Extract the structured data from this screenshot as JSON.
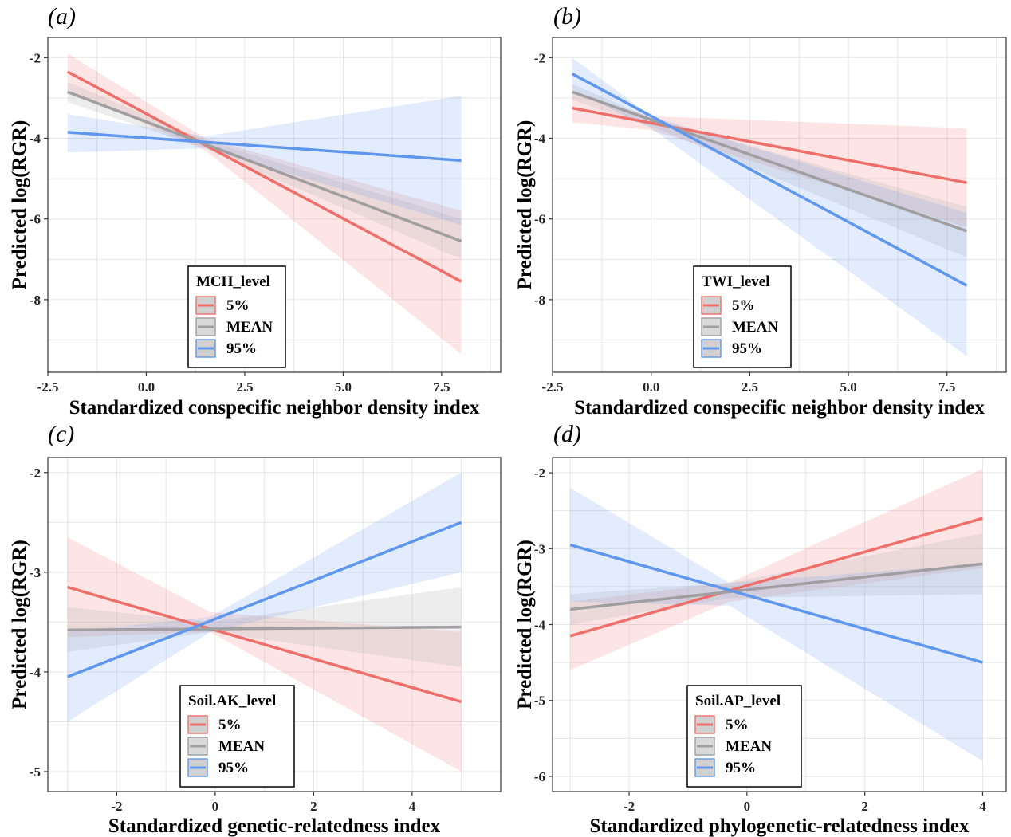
{
  "chart_data": [
    {
      "panel": "(a)",
      "type": "line",
      "xlabel": "Standardized conspecific neighbor density index",
      "ylabel": "Predicted log(RGR)",
      "xlim": [
        -2.5,
        9.0
      ],
      "ylim": [
        -9.8,
        -1.5
      ],
      "xticks": [
        -2.5,
        0.0,
        2.5,
        5.0,
        7.5
      ],
      "xtick_labels": [
        "-2.5",
        "0.0",
        "2.5",
        "5.0",
        "7.5"
      ],
      "yticks": [
        -2,
        -4,
        -6,
        -8
      ],
      "ytick_labels": [
        "-2",
        "-4",
        "-6",
        "-8"
      ],
      "grid": true,
      "legend": {
        "title": "MCH_level",
        "position": "bottom-center"
      },
      "series": [
        {
          "name": "5%",
          "color": "#ee6f6a",
          "line": {
            "x": [
              -2,
              8
            ],
            "y": [
              -2.35,
              -7.55
            ]
          },
          "ribbon": {
            "x": [
              -2,
              1.5,
              8
            ],
            "lower": [
              -2.8,
              -4.3,
              -9.35
            ],
            "upper": [
              -1.9,
              -4.0,
              -5.8
            ]
          }
        },
        {
          "name": "MEAN",
          "color": "#a09ea0",
          "line": {
            "x": [
              -2,
              8
            ],
            "y": [
              -2.85,
              -6.55
            ]
          },
          "ribbon": {
            "x": [
              -2,
              1.5,
              8
            ],
            "lower": [
              -3.1,
              -4.25,
              -7.0
            ],
            "upper": [
              -2.6,
              -4.05,
              -6.0
            ]
          }
        },
        {
          "name": "95%",
          "color": "#5f97ee",
          "line": {
            "x": [
              -2,
              8
            ],
            "y": [
              -3.85,
              -4.55
            ]
          },
          "ribbon": {
            "x": [
              -2,
              1.5,
              8
            ],
            "lower": [
              -4.35,
              -4.25,
              -6.15
            ],
            "upper": [
              -3.4,
              -3.95,
              -2.95
            ]
          }
        }
      ]
    },
    {
      "panel": "(b)",
      "type": "line",
      "xlabel": "Standardized conspecific neighbor density index",
      "ylabel": "Predicted log(RGR)",
      "xlim": [
        -2.5,
        9.0
      ],
      "ylim": [
        -9.8,
        -1.5
      ],
      "xticks": [
        -2.5,
        0.0,
        2.5,
        5.0,
        7.5
      ],
      "xtick_labels": [
        "-2.5",
        "0.0",
        "2.5",
        "5.0",
        "7.5"
      ],
      "yticks": [
        -2,
        -4,
        -6,
        -8
      ],
      "ytick_labels": [
        "-2",
        "-4",
        "-6",
        "-8"
      ],
      "grid": true,
      "legend": {
        "title": "TWI_level",
        "position": "bottom-center"
      },
      "series": [
        {
          "name": "5%",
          "color": "#ee6f6a",
          "line": {
            "x": [
              -2,
              8
            ],
            "y": [
              -3.25,
              -5.1
            ]
          },
          "ribbon": {
            "x": [
              -2,
              0,
              8
            ],
            "lower": [
              -3.6,
              -3.8,
              -6.2
            ],
            "upper": [
              -2.9,
              -3.45,
              -3.75
            ]
          }
        },
        {
          "name": "MEAN",
          "color": "#a09ea0",
          "line": {
            "x": [
              -2,
              8
            ],
            "y": [
              -2.85,
              -6.3
            ]
          },
          "ribbon": {
            "x": [
              -2,
              0,
              8
            ],
            "lower": [
              -3.05,
              -3.7,
              -6.95
            ],
            "upper": [
              -2.65,
              -3.5,
              -5.7
            ]
          }
        },
        {
          "name": "95%",
          "color": "#5f97ee",
          "line": {
            "x": [
              -2,
              8
            ],
            "y": [
              -2.4,
              -7.65
            ]
          },
          "ribbon": {
            "x": [
              -2,
              0,
              8
            ],
            "lower": [
              -2.8,
              -3.75,
              -9.4
            ],
            "upper": [
              -2.0,
              -3.45,
              -5.85
            ]
          }
        }
      ]
    },
    {
      "panel": "(c)",
      "type": "line",
      "xlabel": "Standardized genetic-relatedness index",
      "ylabel": "Predicted log(RGR)",
      "xlim": [
        -3.4,
        5.8
      ],
      "ylim": [
        -5.2,
        -1.85
      ],
      "xticks": [
        -2,
        0,
        2,
        4
      ],
      "xtick_labels": [
        "-2",
        "0",
        "2",
        "4"
      ],
      "yticks": [
        -2,
        -3,
        -4,
        -5
      ],
      "ytick_labels": [
        "-2",
        "-3",
        "-4",
        "-5"
      ],
      "grid": true,
      "legend": {
        "title": "Soil.AK_level",
        "position": "bottom-center"
      },
      "series": [
        {
          "name": "5%",
          "color": "#ee6f6a",
          "line": {
            "x": [
              -3,
              5
            ],
            "y": [
              -3.15,
              -4.3
            ]
          },
          "ribbon": {
            "x": [
              -3,
              -0.1,
              5
            ],
            "lower": [
              -3.65,
              -3.6,
              -5.0
            ],
            "upper": [
              -2.65,
              -3.4,
              -3.6
            ]
          }
        },
        {
          "name": "MEAN",
          "color": "#a09ea0",
          "line": {
            "x": [
              -3,
              5
            ],
            "y": [
              -3.58,
              -3.55
            ]
          },
          "ribbon": {
            "x": [
              -3,
              -0.1,
              5
            ],
            "lower": [
              -3.8,
              -3.6,
              -3.95
            ],
            "upper": [
              -3.35,
              -3.5,
              -3.15
            ]
          }
        },
        {
          "name": "95%",
          "color": "#5f97ee",
          "line": {
            "x": [
              -3,
              5
            ],
            "y": [
              -4.05,
              -2.5
            ]
          },
          "ribbon": {
            "x": [
              -3,
              -0.1,
              5
            ],
            "lower": [
              -4.5,
              -3.6,
              -3.0
            ],
            "upper": [
              -3.6,
              -3.45,
              -2.0
            ]
          }
        }
      ]
    },
    {
      "panel": "(d)",
      "type": "line",
      "xlabel": "Standardized phylogenetic-relatedness index",
      "ylabel": "Predicted log(RGR)",
      "xlim": [
        -3.3,
        4.4
      ],
      "ylim": [
        -6.2,
        -1.8
      ],
      "xticks": [
        -2,
        0,
        2,
        4
      ],
      "xtick_labels": [
        "-2",
        "0",
        "2",
        "4"
      ],
      "yticks": [
        -2,
        -3,
        -4,
        -5,
        -6
      ],
      "ytick_labels": [
        "-2",
        "-3",
        "-4",
        "-5",
        "-6"
      ],
      "grid": true,
      "legend": {
        "title": "Soil.AP_level",
        "position": "bottom-center"
      },
      "series": [
        {
          "name": "5%",
          "color": "#ee6f6a",
          "line": {
            "x": [
              -3,
              4
            ],
            "y": [
              -4.15,
              -2.6
            ]
          },
          "ribbon": {
            "x": [
              -3,
              -0.3,
              4
            ],
            "lower": [
              -4.6,
              -3.7,
              -3.25
            ],
            "upper": [
              -3.7,
              -3.45,
              -1.95
            ]
          }
        },
        {
          "name": "MEAN",
          "color": "#a09ea0",
          "line": {
            "x": [
              -3,
              4
            ],
            "y": [
              -3.8,
              -3.2
            ]
          },
          "ribbon": {
            "x": [
              -3,
              -0.3,
              4
            ],
            "lower": [
              -4.0,
              -3.65,
              -3.6
            ],
            "upper": [
              -3.6,
              -3.45,
              -2.8
            ]
          }
        },
        {
          "name": "95%",
          "color": "#5f97ee",
          "line": {
            "x": [
              -3,
              4
            ],
            "y": [
              -2.95,
              -4.5
            ]
          },
          "ribbon": {
            "x": [
              -3,
              -0.3,
              4
            ],
            "lower": [
              -3.7,
              -3.75,
              -5.8
            ],
            "upper": [
              -2.2,
              -3.45,
              -3.2
            ]
          }
        }
      ]
    }
  ]
}
